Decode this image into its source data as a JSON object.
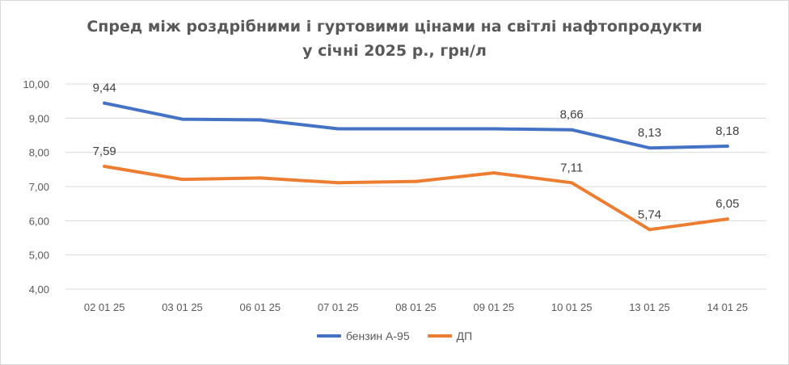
{
  "chart_data": {
    "type": "line",
    "title_line1": "Спред між роздрібними і гуртовими цінами на світлі нафтопродукти",
    "title_line2": "у січні 2025 р., грн/л",
    "categories": [
      "02 01 25",
      "03 01 25",
      "06 01 25",
      "07 01 25",
      "08 01 25",
      "09 01 25",
      "10 01 25",
      "13 01 25",
      "14 01 25"
    ],
    "ylim": [
      4,
      10
    ],
    "yticks": [
      "4,00",
      "5,00",
      "6,00",
      "7,00",
      "8,00",
      "9,00",
      "10,00"
    ],
    "grid": true,
    "legend_position": "bottom",
    "series": [
      {
        "name": "бензин А-95",
        "color": "#4472c4",
        "values": [
          9.44,
          8.97,
          8.95,
          8.69,
          8.69,
          8.69,
          8.66,
          8.13,
          8.18
        ],
        "labels": [
          {
            "index": 0,
            "text": "9,44"
          },
          {
            "index": 6,
            "text": "8,66"
          },
          {
            "index": 7,
            "text": "8,13"
          },
          {
            "index": 8,
            "text": "8,18"
          }
        ]
      },
      {
        "name": "ДП",
        "color": "#ed7d31",
        "values": [
          7.59,
          7.21,
          7.25,
          7.11,
          7.15,
          7.4,
          7.11,
          5.74,
          6.05
        ],
        "labels": [
          {
            "index": 0,
            "text": "7,59"
          },
          {
            "index": 6,
            "text": "7,11"
          },
          {
            "index": 7,
            "text": "5,74"
          },
          {
            "index": 8,
            "text": "6,05"
          }
        ]
      }
    ]
  }
}
